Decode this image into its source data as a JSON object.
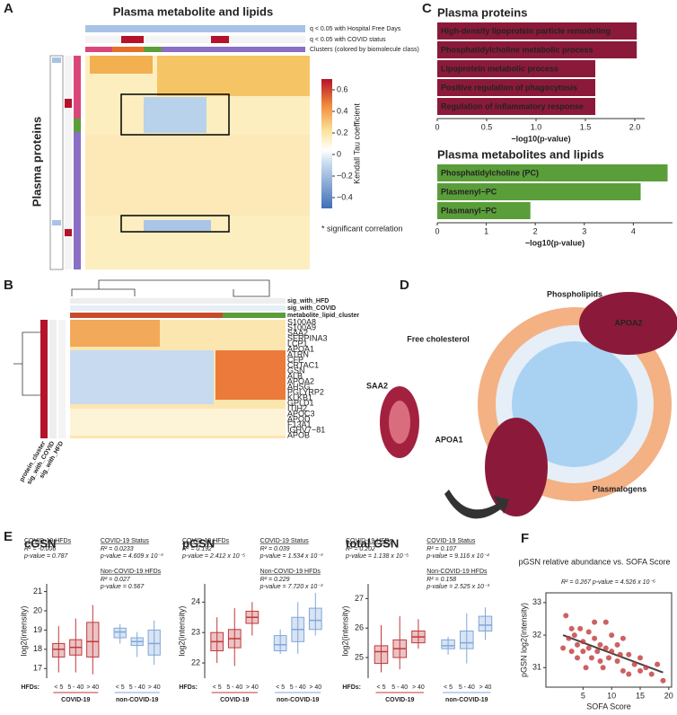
{
  "panel_labels": [
    "A",
    "B",
    "C",
    "D",
    "E",
    "F"
  ],
  "heatmap_a": {
    "title": "Plasma metabolite and lipids",
    "row_annotations": [
      "q < 0.05 with Hospital Free Days",
      "q < 0.05 with COVID status",
      "Clusters (colored by biomolecule class)"
    ],
    "ylabel": "Plasma proteins",
    "colorbar_title": "Kendall Tau coefficient",
    "colorbar_lim": [
      -0.5,
      0.7
    ],
    "colorbar_ticks": [
      0.6,
      0.4,
      0.2,
      0,
      {
        "value": -0.2,
        "label": "−0.2"
      },
      {
        "value": -0.4,
        "label": "−0.4"
      }
    ],
    "note": "* significant correlation"
  },
  "heatmap_b": {
    "column_annotations": [
      "sig_with_HFD",
      "sig_with_COVID",
      "metabolite_lipid_cluster"
    ],
    "row_annotations": [
      "protein_cluster",
      "sig_with_COVID",
      "sig_with_HFD"
    ],
    "rows": [
      "S100A8",
      "S100A9",
      "SAA2",
      "SERPINA3",
      "LCP1",
      "APOA1",
      "ATRN",
      "CFP",
      "CRTAC1",
      "GSN",
      "ALB",
      "APOA2",
      "AHSG",
      "PGLYRP2",
      "KLKB1",
      "GPLD1",
      "ITIH2",
      "APOC3",
      "APOD",
      "F13A1",
      "IGHV7−81",
      "APOB"
    ]
  },
  "diagram_d": {
    "labels": [
      "Phospholipids",
      "Free cholesterol",
      "APOA2",
      "SAA2",
      "APOA1",
      "Plasmalogens"
    ]
  },
  "chart_data": [
    {
      "type": "barh",
      "title": "Plasma proteins",
      "categories": [
        "High-density lipoprotein particle remodeling",
        "Phosphatidylcholine metabolic process",
        "Lipoprotein metabolic process",
        "Positive regulation of phagocytosis",
        "Regulation of inflammatory response"
      ],
      "values": [
        2.02,
        2.02,
        1.6,
        1.6,
        1.6
      ],
      "color": "#8b1a3a",
      "xlim": [
        0,
        2.1
      ],
      "xticks": [
        0,
        0.5,
        {
          "value": 1,
          "label": "1.0"
        },
        1.5,
        {
          "value": 2,
          "label": "2.0"
        }
      ],
      "xlabel": "−log10(p-value)"
    },
    {
      "type": "barh",
      "title": "Plasma metabolites and lipids",
      "categories": [
        "Phosphatidylcholine (PC)",
        "Plasmenyl−PC",
        "Plasmanyl−PC"
      ],
      "values": [
        4.7,
        4.15,
        1.9
      ],
      "color": "#5a9e3a",
      "xlim": [
        0,
        4.8
      ],
      "xticks": [
        0,
        1,
        2,
        3,
        4
      ],
      "xlabel": "−log10(p-value)"
    },
    {
      "type": "box",
      "title": "cGSN",
      "ylabel": "log2(intensity)",
      "xlabel": "HFDs:",
      "ylim": [
        16.5,
        21.4
      ],
      "yticks": [
        17,
        18,
        19,
        20,
        21
      ],
      "categories": [
        "< 5",
        "5 - 40",
        "> 40"
      ],
      "series": [
        {
          "name": "COVID-19",
          "color": "#c0393b",
          "boxes": [
            [
              16.8,
              17.6,
              18.0,
              18.3,
              19.2
            ],
            [
              16.8,
              17.7,
              18.1,
              18.5,
              19.6
            ],
            [
              16.7,
              17.6,
              18.4,
              19.4,
              20.3
            ]
          ]
        },
        {
          "name": "non-COVID-19",
          "color": "#7fa7d9",
          "boxes": [
            [
              18.3,
              18.6,
              18.9,
              19.1,
              19.3
            ],
            [
              17.6,
              18.2,
              18.4,
              18.6,
              18.9
            ],
            [
              17.2,
              17.7,
              18.3,
              19.0,
              19.5
            ]
          ]
        }
      ],
      "annotations": [
        {
          "title": "COVID-19 HFDs",
          "lines": [
            "R² = -0.006",
            "p-value = 0.787"
          ]
        },
        {
          "title": "COVID-19 Status",
          "lines": [
            "R² = 0.0233",
            "p-value = 4.609 x 10⁻³"
          ]
        },
        {
          "title": "Non-COVID-19 HFDs",
          "lines": [
            "R² = 0.027",
            "p-value = 0.567"
          ]
        }
      ]
    },
    {
      "type": "box",
      "title": "pGSN",
      "ylabel": "log2(intensity)",
      "xlabel": "HFDs:",
      "ylim": [
        21.5,
        24.6
      ],
      "yticks": [
        22,
        23,
        24
      ],
      "categories": [
        "< 5",
        "5 - 40",
        "> 40"
      ],
      "series": [
        {
          "name": "COVID-19",
          "color": "#c0393b",
          "boxes": [
            [
              22.0,
              22.4,
              22.7,
              23.0,
              23.5
            ],
            [
              21.9,
              22.5,
              22.8,
              23.1,
              23.8
            ],
            [
              22.9,
              23.3,
              23.5,
              23.7,
              24.0
            ]
          ]
        },
        {
          "name": "non-COVID-19",
          "color": "#7fa7d9",
          "boxes": [
            [
              22.3,
              22.4,
              22.6,
              22.9,
              23.1
            ],
            [
              22.3,
              22.7,
              23.1,
              23.5,
              24.0
            ],
            [
              22.9,
              23.1,
              23.4,
              23.8,
              24.3
            ]
          ]
        }
      ],
      "annotations": [
        {
          "title": "COVID-19 HFDs",
          "lines": [
            "R² = 0.192",
            "p-value = 2.412 x 10⁻⁵"
          ]
        },
        {
          "title": "COVID-19 Status",
          "lines": [
            "R² = 0.039",
            "p-value = 1.534 x 10⁻³"
          ]
        },
        {
          "title": "Non-COVID-19 HFDs",
          "lines": [
            "R² = 0.229",
            "p-value = 7.720 x 10⁻³"
          ]
        }
      ]
    },
    {
      "type": "box",
      "title": "total GSN",
      "ylabel": "log2(intensity)",
      "xlabel": "HFDs:",
      "ylim": [
        24.3,
        27.5
      ],
      "yticks": [
        25,
        26,
        27
      ],
      "categories": [
        "< 5",
        "5 - 40",
        "> 40"
      ],
      "series": [
        {
          "name": "COVID-19",
          "color": "#c0393b",
          "boxes": [
            [
              24.5,
              24.8,
              25.2,
              25.4,
              26.1
            ],
            [
              24.6,
              25.0,
              25.3,
              25.6,
              26.4
            ],
            [
              25.3,
              25.5,
              25.7,
              25.9,
              26.3
            ]
          ]
        },
        {
          "name": "non-COVID-19",
          "color": "#7fa7d9",
          "boxes": [
            [
              25.1,
              25.3,
              25.4,
              25.6,
              25.7
            ],
            [
              24.8,
              25.3,
              25.5,
              25.9,
              26.5
            ],
            [
              25.6,
              25.9,
              26.1,
              26.4,
              26.7
            ]
          ]
        }
      ],
      "annotations": [
        {
          "title": "COVID-19 HFDs",
          "lines": [
            "R² = 0.202",
            "p-value = 1.138 x 10⁻⁵"
          ]
        },
        {
          "title": "COVID-19 Status",
          "lines": [
            "R² = 0.107",
            "p-value = 9.116 x 10⁻⁴"
          ]
        },
        {
          "title": "Non-COVID-19 HFDs",
          "lines": [
            "R² = 0.158",
            "p-value = 2.525 x 10⁻³"
          ]
        }
      ]
    },
    {
      "type": "scatter",
      "title": "pGSN relative abundance vs. SOFA Score",
      "annotation": "R² = 0.267   p-value = 4.526 x 10⁻⁶",
      "xlabel": "SOFA Score",
      "ylabel": "pGSN log2(intensity)",
      "color": "#c0393b",
      "xlim": [
        -1.5,
        20.5
      ],
      "ylim": [
        30.4,
        33.3
      ],
      "xticks": [
        5,
        10,
        15,
        20
      ],
      "yticks": [
        31,
        32,
        33
      ],
      "x": [
        1.5,
        2,
        2.5,
        3,
        3,
        3.5,
        4,
        4,
        4.5,
        5,
        5,
        5.5,
        6,
        6,
        6.5,
        7,
        7,
        7.5,
        8,
        8,
        8.5,
        9,
        9,
        9.5,
        10,
        10,
        11,
        11,
        11.5,
        12,
        12,
        13,
        13,
        14,
        15,
        15,
        16,
        17,
        18,
        19
      ],
      "y": [
        31.6,
        32.6,
        31.9,
        32.2,
        31.5,
        32.0,
        31.7,
        31.3,
        32.2,
        31.8,
        31.5,
        31.0,
        32.1,
        31.6,
        31.3,
        32.4,
        31.9,
        31.5,
        31.7,
        31.2,
        31.0,
        31.6,
        32.4,
        31.3,
        31.5,
        32.0,
        31.7,
        31.2,
        31.4,
        30.9,
        31.9,
        31.4,
        30.8,
        31.1,
        30.9,
        31.3,
        31.0,
        30.8,
        31.1,
        30.6
      ],
      "fit": {
        "x": [
          1.5,
          19
        ],
        "y": [
          32.0,
          30.85
        ]
      }
    }
  ]
}
